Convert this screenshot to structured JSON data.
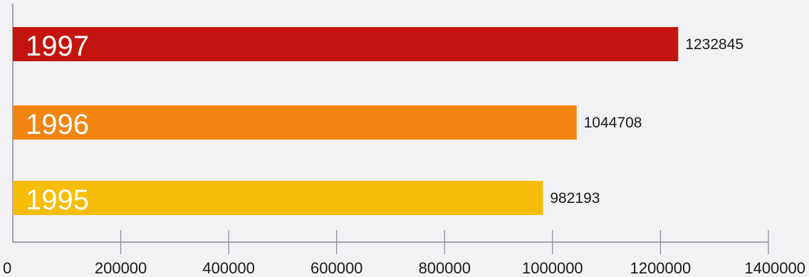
{
  "chart_data": {
    "type": "bar",
    "orientation": "horizontal",
    "categories": [
      "1997",
      "1996",
      "1995"
    ],
    "values": [
      1232845,
      1044708,
      982193
    ],
    "colors": [
      "#c3140f",
      "#f18510",
      "#f6bd0a"
    ],
    "xlim": [
      0,
      1400000
    ],
    "xticks": [
      "0",
      "200000",
      "400000",
      "600000",
      "800000",
      "1000000",
      "1200000",
      "1400000"
    ],
    "grid": false,
    "legend": "none"
  }
}
